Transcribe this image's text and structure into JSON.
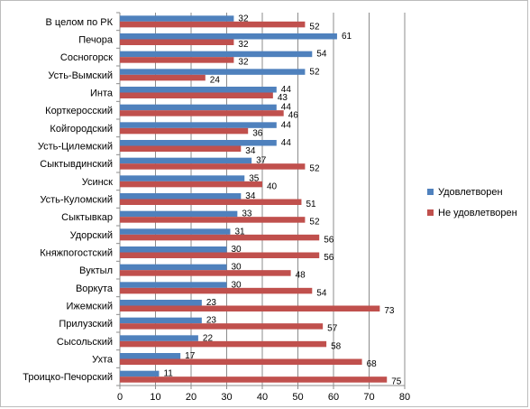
{
  "chart_data": {
    "type": "bar",
    "orientation": "horizontal",
    "categories": [
      "В целом по РК",
      "Печора",
      "Сосногорск",
      "Усть-Вымский",
      "Инта",
      "Корткеросский",
      "Койгородский",
      "Усть-Цилемский",
      "Сыктывдинский",
      "Усинск",
      "Усть-Куломский",
      "Сыктывкар",
      "Удорский",
      "Княжпогостский",
      "Вуктыл",
      "Воркута",
      "Ижемский",
      "Прилузский",
      "Сысольский",
      "Ухта",
      "Троицко-Печорский"
    ],
    "series": [
      {
        "name": "Удовлетворен",
        "color": "#4F81BD",
        "values": [
          32,
          61,
          54,
          52,
          44,
          44,
          44,
          44,
          37,
          35,
          34,
          33,
          31,
          30,
          30,
          30,
          23,
          23,
          22,
          17,
          11
        ]
      },
      {
        "name": "Не удовлетворен",
        "color": "#C0504D",
        "values": [
          52,
          32,
          32,
          24,
          43,
          46,
          36,
          34,
          52,
          40,
          51,
          52,
          56,
          56,
          48,
          54,
          73,
          57,
          58,
          68,
          75
        ]
      }
    ],
    "x_ticks": [
      0,
      10,
      20,
      30,
      40,
      50,
      60,
      70,
      80
    ],
    "xlim": [
      0,
      80
    ],
    "grid": true,
    "legend_position": "right"
  }
}
